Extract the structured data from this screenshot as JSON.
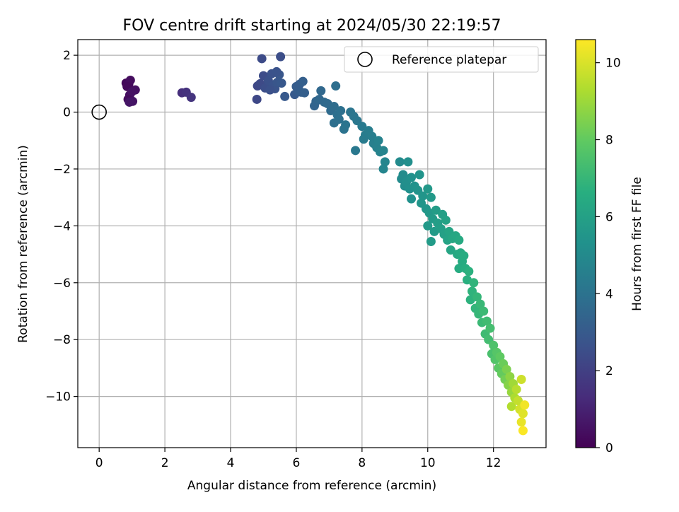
{
  "chart_data": {
    "type": "scatter",
    "title": "FOV centre drift starting at 2024/05/30 22:19:57",
    "xlabel": "Angular distance from reference (arcmin)",
    "ylabel": "Rotation from reference (arcmin)",
    "xlim": [
      -0.65,
      13.6
    ],
    "ylim": [
      -11.8,
      2.55
    ],
    "xticks": [
      0,
      2,
      4,
      6,
      8,
      10,
      12
    ],
    "yticks": [
      2,
      0,
      -2,
      -4,
      -6,
      -8,
      -10
    ],
    "xtick_labels": [
      "0",
      "2",
      "4",
      "6",
      "8",
      "10",
      "12"
    ],
    "ytick_labels": [
      "2",
      "0",
      "−2",
      "−4",
      "−6",
      "−8",
      "−10"
    ],
    "grid": true,
    "legend": {
      "position": "top-right",
      "label": "Reference platepar"
    },
    "reference_point": {
      "x": 0,
      "y": 0,
      "marker": "open-circle"
    },
    "colorbar": {
      "label": "Hours from first FF file",
      "colormap": "viridis",
      "range": [
        0,
        10.6
      ],
      "ticks": [
        0,
        2,
        4,
        6,
        8,
        10
      ],
      "tick_labels": [
        "0",
        "2",
        "4",
        "6",
        "8",
        "10"
      ]
    },
    "series": [
      {
        "color_by": "hours",
        "points": [
          [
            0.82,
            1.02,
            0.2
          ],
          [
            0.9,
            0.98,
            0.3
          ],
          [
            0.95,
            1.12,
            0.35
          ],
          [
            0.85,
            0.9,
            0.25
          ],
          [
            0.93,
            0.6,
            0.4
          ],
          [
            1.1,
            0.78,
            0.45
          ],
          [
            1.0,
            0.72,
            0.5
          ],
          [
            0.88,
            0.45,
            0.3
          ],
          [
            1.02,
            0.38,
            0.55
          ],
          [
            0.92,
            0.35,
            0.6
          ],
          [
            2.52,
            0.68,
            1.4
          ],
          [
            2.65,
            0.7,
            1.5
          ],
          [
            2.8,
            0.52,
            1.6
          ],
          [
            4.95,
            1.88,
            2.4
          ],
          [
            5.52,
            1.95,
            2.5
          ],
          [
            4.82,
            0.92,
            2.3
          ],
          [
            4.9,
            1.0,
            2.35
          ],
          [
            5.0,
            1.28,
            2.45
          ],
          [
            5.05,
            0.85,
            2.5
          ],
          [
            5.15,
            1.1,
            2.6
          ],
          [
            5.25,
            1.35,
            2.65
          ],
          [
            5.3,
            0.95,
            2.7
          ],
          [
            5.35,
            0.82,
            2.75
          ],
          [
            5.42,
            1.05,
            2.8
          ],
          [
            5.48,
            1.32,
            2.85
          ],
          [
            5.55,
            1.02,
            2.9
          ],
          [
            5.4,
            1.42,
            2.7
          ],
          [
            5.2,
            0.78,
            2.6
          ],
          [
            4.8,
            0.45,
            2.3
          ],
          [
            5.65,
            0.55,
            2.95
          ],
          [
            5.95,
            0.62,
            3.0
          ],
          [
            6.0,
            0.9,
            3.05
          ],
          [
            6.05,
            0.75,
            3.1
          ],
          [
            6.1,
            0.98,
            3.1
          ],
          [
            6.15,
            0.7,
            3.15
          ],
          [
            6.2,
            1.08,
            3.2
          ],
          [
            6.25,
            0.68,
            3.2
          ],
          [
            6.55,
            0.22,
            3.4
          ],
          [
            6.6,
            0.38,
            3.45
          ],
          [
            6.7,
            0.45,
            3.5
          ],
          [
            6.75,
            0.75,
            3.55
          ],
          [
            6.85,
            0.35,
            3.6
          ],
          [
            6.95,
            0.3,
            3.65
          ],
          [
            7.05,
            0.05,
            3.7
          ],
          [
            7.15,
            0.2,
            3.75
          ],
          [
            7.2,
            0.92,
            3.8
          ],
          [
            7.25,
            -0.1,
            3.85
          ],
          [
            7.15,
            -0.38,
            3.85
          ],
          [
            7.3,
            -0.25,
            3.9
          ],
          [
            7.45,
            -0.6,
            4.0
          ],
          [
            7.5,
            -0.45,
            4.05
          ],
          [
            7.35,
            0.05,
            3.9
          ],
          [
            7.65,
            0.0,
            4.1
          ],
          [
            7.75,
            -0.15,
            4.15
          ],
          [
            7.85,
            -0.3,
            4.2
          ],
          [
            8.0,
            -0.5,
            4.3
          ],
          [
            8.05,
            -0.95,
            4.35
          ],
          [
            8.1,
            -0.8,
            4.4
          ],
          [
            7.8,
            -1.35,
            4.25
          ],
          [
            8.2,
            -0.65,
            4.45
          ],
          [
            8.3,
            -0.85,
            4.5
          ],
          [
            8.35,
            -1.1,
            4.55
          ],
          [
            8.45,
            -1.25,
            4.6
          ],
          [
            8.5,
            -1.0,
            4.65
          ],
          [
            8.55,
            -1.4,
            4.7
          ],
          [
            8.65,
            -1.35,
            4.75
          ],
          [
            8.7,
            -1.75,
            4.8
          ],
          [
            8.65,
            -2.0,
            4.8
          ],
          [
            9.15,
            -1.75,
            5.0
          ],
          [
            9.2,
            -2.35,
            5.05
          ],
          [
            9.25,
            -2.2,
            5.1
          ],
          [
            9.3,
            -2.6,
            5.15
          ],
          [
            9.4,
            -1.75,
            5.2
          ],
          [
            9.35,
            -2.45,
            5.2
          ],
          [
            9.45,
            -2.7,
            5.25
          ],
          [
            9.5,
            -2.3,
            5.3
          ],
          [
            9.5,
            -3.05,
            5.3
          ],
          [
            9.6,
            -2.6,
            5.35
          ],
          [
            9.7,
            -2.75,
            5.4
          ],
          [
            9.75,
            -2.2,
            5.45
          ],
          [
            9.8,
            -3.2,
            5.5
          ],
          [
            9.85,
            -2.95,
            5.5
          ],
          [
            9.95,
            -3.4,
            5.55
          ],
          [
            10.0,
            -2.7,
            5.6
          ],
          [
            10.05,
            -3.55,
            5.6
          ],
          [
            10.1,
            -3.0,
            5.65
          ],
          [
            10.0,
            -4.0,
            5.65
          ],
          [
            10.15,
            -3.75,
            5.7
          ],
          [
            10.2,
            -4.2,
            5.75
          ],
          [
            10.1,
            -4.55,
            5.75
          ],
          [
            10.25,
            -3.45,
            5.8
          ],
          [
            10.3,
            -3.9,
            5.85
          ],
          [
            10.4,
            -4.1,
            5.9
          ],
          [
            10.45,
            -3.6,
            5.95
          ],
          [
            10.5,
            -4.3,
            6.0
          ],
          [
            10.55,
            -3.8,
            6.05
          ],
          [
            10.6,
            -4.5,
            6.1
          ],
          [
            10.65,
            -4.2,
            6.15
          ],
          [
            10.7,
            -4.85,
            6.2
          ],
          [
            10.75,
            -4.45,
            6.25
          ],
          [
            10.85,
            -4.35,
            6.3
          ],
          [
            10.9,
            -5.0,
            6.35
          ],
          [
            10.95,
            -4.5,
            6.4
          ],
          [
            11.0,
            -4.95,
            6.45
          ],
          [
            11.05,
            -5.25,
            6.5
          ],
          [
            10.95,
            -5.5,
            6.5
          ],
          [
            11.1,
            -5.05,
            6.55
          ],
          [
            11.15,
            -5.5,
            6.6
          ],
          [
            11.2,
            -5.9,
            6.65
          ],
          [
            11.25,
            -5.6,
            6.7
          ],
          [
            11.3,
            -6.6,
            6.75
          ],
          [
            11.35,
            -6.3,
            6.8
          ],
          [
            11.4,
            -6.0,
            6.85
          ],
          [
            11.45,
            -6.9,
            6.9
          ],
          [
            11.5,
            -6.5,
            6.95
          ],
          [
            11.55,
            -7.1,
            7.0
          ],
          [
            11.6,
            -6.75,
            7.05
          ],
          [
            11.65,
            -7.4,
            7.1
          ],
          [
            11.7,
            -7.0,
            7.15
          ],
          [
            11.75,
            -7.8,
            7.2
          ],
          [
            11.8,
            -7.35,
            7.25
          ],
          [
            11.85,
            -8.0,
            7.3
          ],
          [
            11.9,
            -7.6,
            7.35
          ],
          [
            11.95,
            -8.5,
            7.45
          ],
          [
            12.0,
            -8.2,
            7.55
          ],
          [
            12.05,
            -8.7,
            7.65
          ],
          [
            12.1,
            -8.45,
            7.75
          ],
          [
            12.15,
            -9.0,
            7.85
          ],
          [
            12.2,
            -8.6,
            7.95
          ],
          [
            12.25,
            -9.2,
            8.05
          ],
          [
            12.3,
            -8.85,
            8.15
          ],
          [
            12.35,
            -9.4,
            8.3
          ],
          [
            12.4,
            -9.05,
            8.45
          ],
          [
            12.45,
            -9.6,
            8.6
          ],
          [
            12.5,
            -9.3,
            8.75
          ],
          [
            12.55,
            -9.85,
            8.9
          ],
          [
            12.6,
            -9.55,
            9.05
          ],
          [
            12.65,
            -10.05,
            9.25
          ],
          [
            12.55,
            -10.35,
            9.35
          ],
          [
            12.7,
            -9.75,
            9.45
          ],
          [
            12.75,
            -10.15,
            9.65
          ],
          [
            12.85,
            -9.4,
            9.8
          ],
          [
            12.8,
            -10.45,
            9.9
          ],
          [
            12.9,
            -10.6,
            10.1
          ],
          [
            12.85,
            -10.9,
            10.25
          ],
          [
            12.95,
            -10.3,
            10.4
          ],
          [
            12.9,
            -11.2,
            10.55
          ]
        ]
      }
    ]
  }
}
